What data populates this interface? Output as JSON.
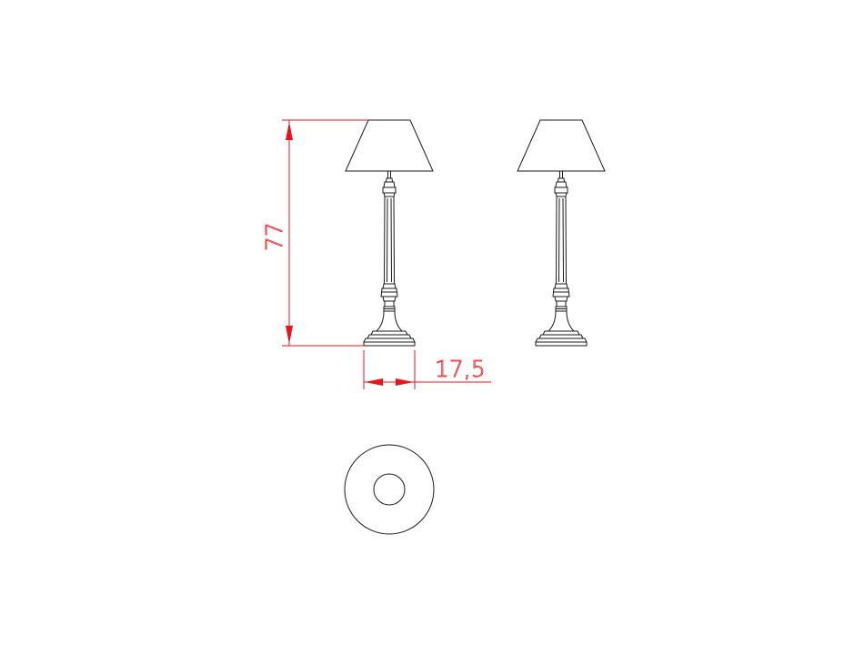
{
  "drawing": {
    "height_dimension": {
      "value": "77"
    },
    "width_dimension": {
      "value": "17,5"
    },
    "colors": {
      "linework": "#1a1a1a",
      "dimension": "#e8141c",
      "background": "#ffffff"
    }
  }
}
